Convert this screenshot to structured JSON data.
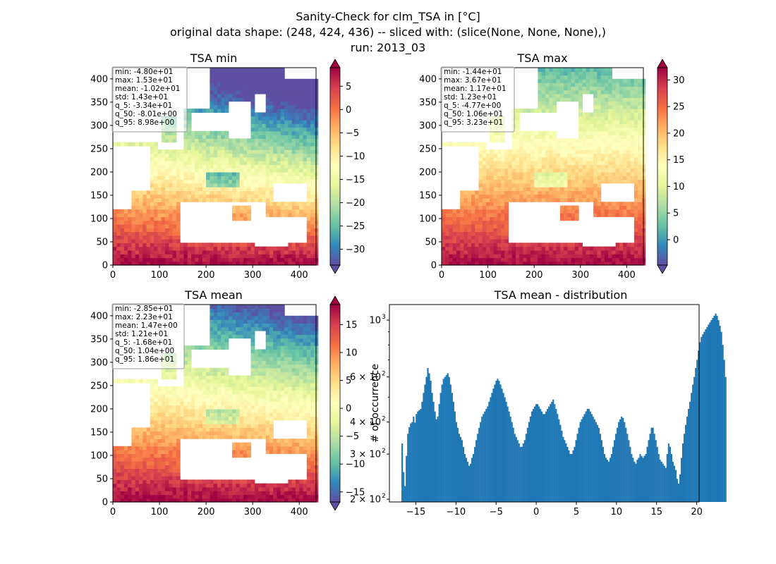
{
  "suptitle": {
    "line1": "Sanity-Check for clm_TSA in [°C]",
    "line2": "original data shape: (248, 424, 436) -- sliced with: (slice(None, None, None),)",
    "line3": "run: 2013_03"
  },
  "colors": {
    "hist_bar": "#1f77b4",
    "land_mask": "#ffffff",
    "axis": "#000000"
  },
  "colormap": "Spectral_r",
  "chart_data": [
    {
      "type": "heatmap",
      "title": "TSA min",
      "xlim": [
        0,
        436
      ],
      "ylim": [
        0,
        424
      ],
      "xticks": [
        0,
        100,
        200,
        300,
        400
      ],
      "yticks": [
        0,
        50,
        100,
        150,
        200,
        250,
        300,
        350,
        400
      ],
      "xtick_labels": [
        "0",
        "100",
        "200",
        "300",
        "400"
      ],
      "ytick_labels": [
        "0",
        "50",
        "100",
        "150",
        "200",
        "250",
        "300",
        "350",
        "400"
      ],
      "colorbar": {
        "vmin": -33.4,
        "vmax": 8.98,
        "extend": "both",
        "ticks": [
          5,
          0,
          -5,
          -10,
          -15,
          -20,
          -25,
          -30
        ],
        "tick_labels": [
          "5",
          "0",
          "−5",
          "−10",
          "−15",
          "−20",
          "−25",
          "−30"
        ]
      },
      "stats": [
        "min: -4.80e+01",
        "max: 1.53e+01",
        "mean: -1.02e+01",
        "std: 1.43e+01",
        "q_5: -3.34e+01",
        "q_50: -8.01e+00",
        "q_95: 8.98e+00"
      ],
      "stats_placement": "top-left"
    },
    {
      "type": "heatmap",
      "title": "TSA max",
      "xlim": [
        0,
        436
      ],
      "ylim": [
        0,
        424
      ],
      "xticks": [
        0,
        100,
        200,
        300,
        400
      ],
      "yticks": [
        0,
        50,
        100,
        150,
        200,
        250,
        300,
        350,
        400
      ],
      "xtick_labels": [
        "0",
        "100",
        "200",
        "300",
        "400"
      ],
      "ytick_labels": [
        "0",
        "50",
        "100",
        "150",
        "200",
        "250",
        "300",
        "350",
        "400"
      ],
      "colorbar": {
        "vmin": -4.77,
        "vmax": 32.3,
        "extend": "both",
        "ticks": [
          30,
          25,
          20,
          15,
          10,
          5,
          0
        ],
        "tick_labels": [
          "30",
          "25",
          "20",
          "15",
          "10",
          "5",
          "0"
        ]
      },
      "stats": [
        "min: -1.44e+01",
        "max: 3.67e+01",
        "mean: 1.17e+01",
        "std: 1.23e+01",
        "q_5: -4.77e+00",
        "q_50: 1.06e+01",
        "q_95: 3.23e+01"
      ],
      "stats_placement": "top-left"
    },
    {
      "type": "heatmap",
      "title": "TSA mean",
      "xlim": [
        0,
        436
      ],
      "ylim": [
        0,
        424
      ],
      "xticks": [
        0,
        100,
        200,
        300,
        400
      ],
      "yticks": [
        0,
        50,
        100,
        150,
        200,
        250,
        300,
        350,
        400
      ],
      "xtick_labels": [
        "0",
        "100",
        "200",
        "300",
        "400"
      ],
      "ytick_labels": [
        "0",
        "50",
        "100",
        "150",
        "200",
        "250",
        "300",
        "350",
        "400"
      ],
      "colorbar": {
        "vmin": -16.8,
        "vmax": 18.6,
        "extend": "both",
        "ticks": [
          15,
          10,
          5,
          0,
          -5,
          -10,
          -15
        ],
        "tick_labels": [
          "15",
          "10",
          "5",
          "0",
          "−5",
          "−10",
          "−15"
        ]
      },
      "stats": [
        "min: -2.85e+01",
        "max: 2.23e+01",
        "mean: 1.47e+00",
        "std: 1.21e+01",
        "q_5: -1.68e+01",
        "q_50: 1.04e+00",
        "q_95: 1.86e+01"
      ],
      "stats_placement": "top-left"
    },
    {
      "type": "bar",
      "title": "TSA mean - distribution",
      "ylabel": "# of occurrence",
      "xlabel": "",
      "yscale": "log",
      "xlim": [
        -18.3,
        20.3
      ],
      "ylim": [
        195,
        1150
      ],
      "xticks": [
        -15,
        -10,
        -5,
        0,
        5,
        10,
        15,
        20
      ],
      "xtick_labels": [
        "−15",
        "−10",
        "−5",
        "0",
        "5",
        "10",
        "15",
        "20"
      ],
      "yticks": [
        200,
        300,
        400,
        600,
        1000
      ],
      "ytick_labels": [
        {
          "base": "2 × 10",
          "exp": "2"
        },
        {
          "base": "3 × 10",
          "exp": "2"
        },
        {
          "base": "4 × 10",
          "exp": "2"
        },
        {
          "base": "6 × 10",
          "exp": "2"
        },
        {
          "base": "10",
          "exp": "3"
        }
      ],
      "bin_start": -16.8,
      "bin_width": 0.1776,
      "counts": [
        330,
        255,
        225,
        295,
        360,
        382,
        395,
        400,
        420,
        398,
        430,
        440,
        445,
        450,
        480,
        520,
        560,
        600,
        650,
        620,
        580,
        520,
        480,
        440,
        410,
        420,
        470,
        520,
        560,
        590,
        600,
        610,
        620,
        600,
        560,
        520,
        480,
        440,
        400,
        380,
        360,
        350,
        340,
        320,
        300,
        290,
        280,
        270,
        275,
        290,
        300,
        320,
        340,
        360,
        380,
        400,
        420,
        430,
        440,
        450,
        460,
        480,
        500,
        520,
        540,
        560,
        580,
        590,
        580,
        560,
        540,
        520,
        500,
        480,
        460,
        440,
        420,
        400,
        380,
        360,
        350,
        340,
        330,
        320,
        320,
        330,
        340,
        360,
        380,
        400,
        420,
        440,
        450,
        460,
        470,
        470,
        460,
        450,
        440,
        430,
        430,
        440,
        450,
        460,
        470,
        480,
        490,
        470,
        450,
        430,
        410,
        390,
        370,
        350,
        340,
        330,
        320,
        310,
        300,
        300,
        310,
        320,
        340,
        360,
        380,
        400,
        410,
        420,
        430,
        440,
        450,
        450,
        440,
        430,
        420,
        410,
        400,
        390,
        380,
        360,
        340,
        320,
        300,
        290,
        285,
        280,
        290,
        300,
        320,
        340,
        360,
        380,
        400,
        410,
        420,
        415,
        400,
        380,
        360,
        340,
        320,
        300,
        290,
        280,
        275,
        285,
        290,
        300,
        295,
        290,
        295,
        300,
        320,
        340,
        360,
        380,
        380,
        360,
        340,
        320,
        300,
        285,
        280,
        275,
        270,
        265,
        300,
        330,
        320,
        300,
        280,
        270,
        260,
        240,
        230,
        250,
        290,
        330,
        360,
        390,
        420,
        450,
        480,
        520,
        560,
        600,
        650,
        700,
        760,
        820,
        860,
        880,
        900,
        920,
        940,
        960,
        980,
        1000,
        1020,
        1040,
        1060,
        1040,
        1000,
        950,
        900,
        800,
        700,
        600
      ]
    }
  ]
}
